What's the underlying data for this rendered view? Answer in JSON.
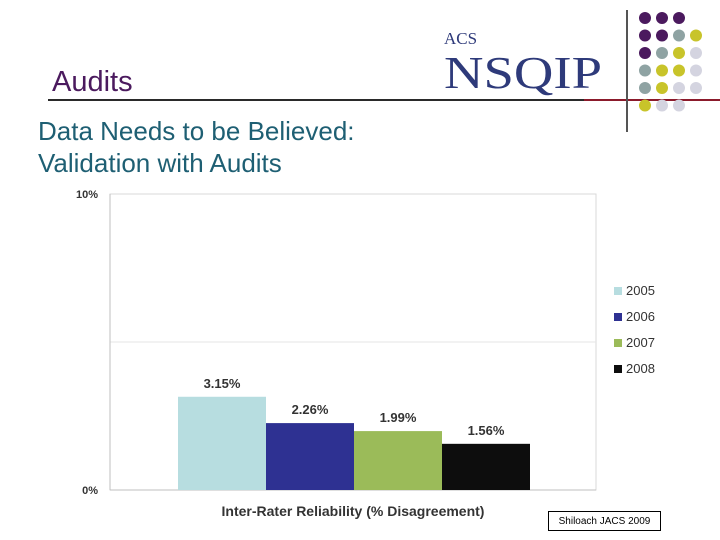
{
  "slide": {
    "title": "Audits",
    "subtitle_lines": [
      "Data Needs to be Believed:",
      "Validation with Audits"
    ],
    "citation": "Shiloach JACS 2009"
  },
  "logo": {
    "top_text": "ACS",
    "main_text": "NSQIP"
  },
  "colors": {
    "title": "#4b1a5e",
    "subtitle": "#1e5f73",
    "dot_purple": "#4b1a5e",
    "dot_gray": "#8fa3a3",
    "dot_olive": "#c8c42a",
    "dot_light": "#d4d4e0"
  },
  "chart_data": {
    "type": "bar",
    "title": "",
    "xlabel": "Inter-Rater Reliability (% Disagreement)",
    "ylabel": "",
    "ylim": [
      0,
      10
    ],
    "y_ticks": [
      {
        "value": 0,
        "label": "0%"
      },
      {
        "value": 10,
        "label": "10%"
      }
    ],
    "grid": true,
    "legend_position": "right",
    "categories": [
      "Inter-Rater Reliability (% Disagreement)"
    ],
    "series": [
      {
        "name": "2005",
        "values": [
          3.15
        ],
        "label": "3.15%",
        "color": "#b7dde0"
      },
      {
        "name": "2006",
        "values": [
          2.26
        ],
        "label": "2.26%",
        "color": "#2e3192"
      },
      {
        "name": "2007",
        "values": [
          1.99
        ],
        "label": "1.99%",
        "color": "#9bbb59"
      },
      {
        "name": "2008",
        "values": [
          1.56
        ],
        "label": "1.56%",
        "color": "#0d0d0d"
      }
    ]
  }
}
